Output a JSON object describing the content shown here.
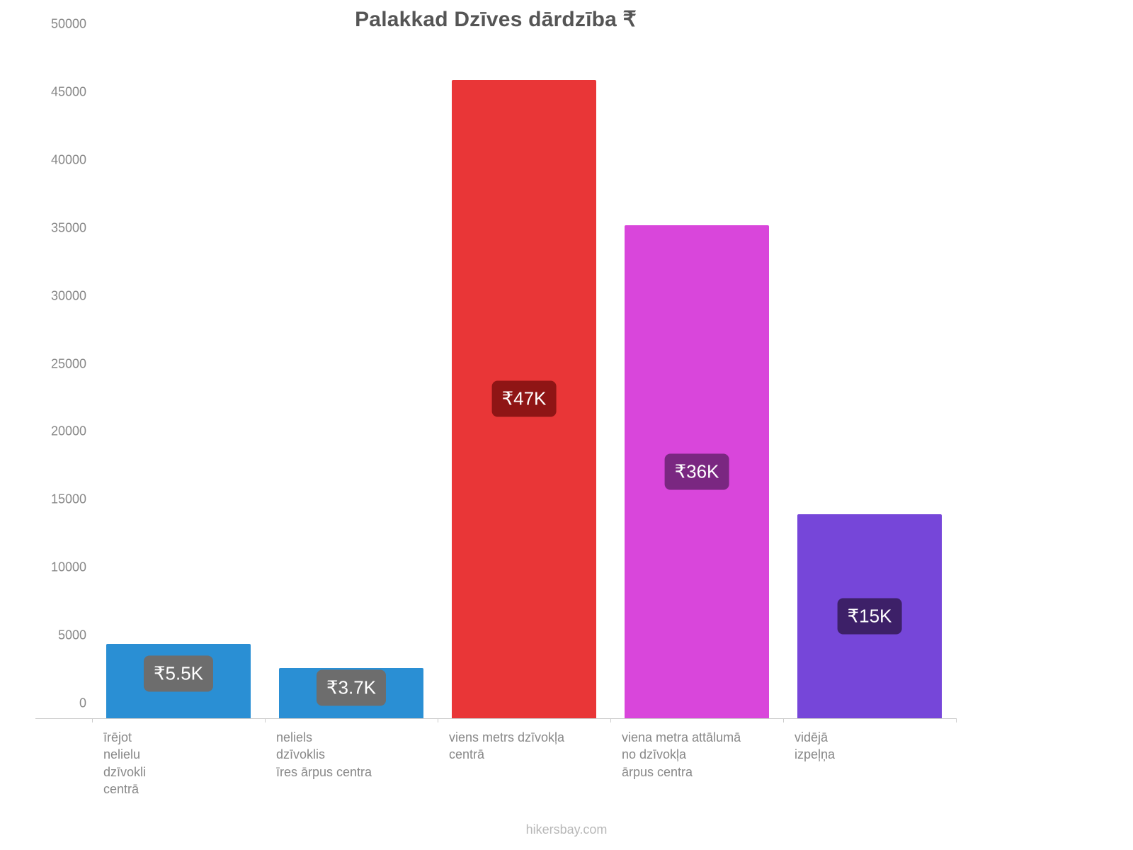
{
  "chart": {
    "type": "bar",
    "title": "Palakkad Dzīves dārdzība ₹",
    "title_fontsize": 30,
    "title_color": "#555555",
    "background_color": "#ffffff",
    "axis_color": "#cccccc",
    "tick_label_color": "#888888",
    "tick_label_fontsize": 18,
    "ylim": [
      0,
      50000
    ],
    "ytick_step": 5000,
    "yticks": [
      0,
      5000,
      10000,
      15000,
      20000,
      25000,
      30000,
      35000,
      40000,
      45000,
      50000
    ],
    "bar_width_pct": 84,
    "bars": [
      {
        "category_lines": [
          "īrējot",
          "nelielu",
          "dzīvokli",
          "centrā"
        ],
        "value": 5500,
        "value_label": "₹5.5K",
        "color": "#2a8fd4",
        "label_bg": "#6d6d6d"
      },
      {
        "category_lines": [
          "neliels",
          "dzīvoklis",
          "īres ārpus centra"
        ],
        "value": 3700,
        "value_label": "₹3.7K",
        "color": "#2a8fd4",
        "label_bg": "#6d6d6d"
      },
      {
        "category_lines": [
          "viens metrs dzīvokļa",
          "centrā"
        ],
        "value": 47000,
        "value_label": "₹47K",
        "color": "#e93637",
        "label_bg": "#8f1515"
      },
      {
        "category_lines": [
          "viena metra attālumā",
          "no dzīvokļa",
          "ārpus centra"
        ],
        "value": 36300,
        "value_label": "₹36K",
        "color": "#d946db",
        "label_bg": "#7a2781"
      },
      {
        "category_lines": [
          "vidējā",
          "izpeļņa"
        ],
        "value": 15000,
        "value_label": "₹15K",
        "color": "#7646d9",
        "label_bg": "#3d2068"
      }
    ]
  },
  "attribution": "hikersbay.com"
}
